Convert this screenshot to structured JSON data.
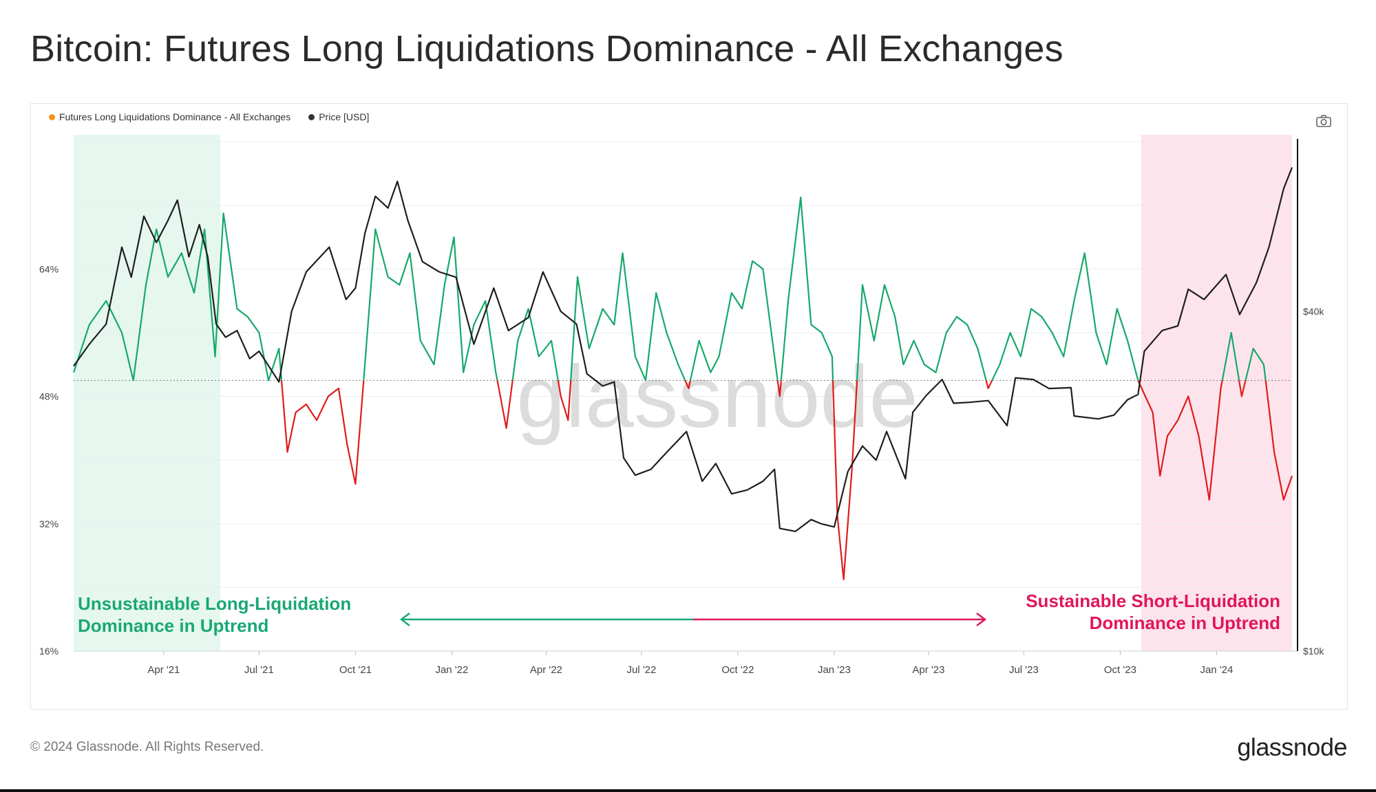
{
  "page": {
    "title": "Bitcoin: Futures Long Liquidations Dominance - All Exchanges",
    "copyright": "© 2024 Glassnode. All Rights Reserved.",
    "brand": "glassnode",
    "watermark": "glassnode"
  },
  "toolbar": {
    "camera_icon": "camera-icon"
  },
  "colors": {
    "above_threshold": "#16a86a",
    "below_threshold": "#e01b1b",
    "price_line": "#1e1e1e",
    "left_band": "#e6f7ef",
    "right_band": "#fde4ec",
    "left_annotation": "#19a874",
    "right_annotation": "#e0165c",
    "legend_dominance": "#f7931a",
    "legend_price": "#333333"
  },
  "chart_data": {
    "type": "line",
    "title": "Bitcoin: Futures Long Liquidations Dominance - All Exchanges",
    "legend": [
      {
        "label": "Futures Long Liquidations Dominance - All Exchanges",
        "color": "#f7931a"
      },
      {
        "label": "Price [USD]",
        "color": "#333333"
      }
    ],
    "x_ticks": [
      "Apr '21",
      "Jul '21",
      "Oct '21",
      "Jan '22",
      "Apr '22",
      "Jul '22",
      "Oct '22",
      "Jan '23",
      "Apr '23",
      "Jul '23",
      "Oct '23",
      "Jan '24"
    ],
    "x_tick_dates": [
      "2021-04-01",
      "2021-07-01",
      "2021-10-01",
      "2022-01-01",
      "2022-04-01",
      "2022-07-01",
      "2022-10-01",
      "2023-01-01",
      "2023-04-01",
      "2023-07-01",
      "2023-10-01",
      "2024-01-01"
    ],
    "x_range": [
      "2021-01-05",
      "2024-03-13"
    ],
    "y_left": {
      "ticks": [
        "16%",
        "32%",
        "48%",
        "64%"
      ],
      "values": [
        16,
        32,
        48,
        64
      ],
      "range": [
        16,
        80
      ],
      "scale": "linear"
    },
    "y_right": {
      "ticks": [
        "$10k",
        "$40k"
      ],
      "values": [
        10000,
        40000
      ],
      "range": [
        10000,
        80000
      ],
      "scale": "log"
    },
    "threshold": 50,
    "grid": true,
    "legend_position": "top-left",
    "series": [
      {
        "name": "Futures Long Liquidations Dominance - All Exchanges",
        "axis": "left",
        "color_above_threshold": "#16a86a",
        "color_below_threshold": "#e01b1b",
        "points": [
          [
            "2021-01-05",
            51
          ],
          [
            "2021-01-20",
            57
          ],
          [
            "2021-02-05",
            60
          ],
          [
            "2021-02-20",
            56
          ],
          [
            "2021-03-03",
            50
          ],
          [
            "2021-03-15",
            62
          ],
          [
            "2021-03-25",
            69
          ],
          [
            "2021-04-05",
            63
          ],
          [
            "2021-04-18",
            66
          ],
          [
            "2021-04-30",
            61
          ],
          [
            "2021-05-10",
            69
          ],
          [
            "2021-05-20",
            53
          ],
          [
            "2021-05-28",
            71
          ],
          [
            "2021-06-10",
            59
          ],
          [
            "2021-06-20",
            58
          ],
          [
            "2021-07-01",
            56
          ],
          [
            "2021-07-10",
            50
          ],
          [
            "2021-07-20",
            54
          ],
          [
            "2021-07-28",
            41
          ],
          [
            "2021-08-05",
            46
          ],
          [
            "2021-08-15",
            47
          ],
          [
            "2021-08-25",
            45
          ],
          [
            "2021-09-05",
            48
          ],
          [
            "2021-09-15",
            49
          ],
          [
            "2021-09-23",
            42
          ],
          [
            "2021-10-01",
            37
          ],
          [
            "2021-10-10",
            52
          ],
          [
            "2021-10-20",
            69
          ],
          [
            "2021-11-01",
            63
          ],
          [
            "2021-11-12",
            62
          ],
          [
            "2021-11-22",
            66
          ],
          [
            "2021-12-02",
            55
          ],
          [
            "2021-12-15",
            52
          ],
          [
            "2021-12-25",
            62
          ],
          [
            "2022-01-03",
            68
          ],
          [
            "2022-01-12",
            51
          ],
          [
            "2022-01-22",
            57
          ],
          [
            "2022-02-02",
            60
          ],
          [
            "2022-02-12",
            51
          ],
          [
            "2022-02-22",
            44
          ],
          [
            "2022-03-05",
            55
          ],
          [
            "2022-03-15",
            59
          ],
          [
            "2022-03-25",
            53
          ],
          [
            "2022-04-06",
            55
          ],
          [
            "2022-04-15",
            48
          ],
          [
            "2022-04-22",
            45
          ],
          [
            "2022-05-01",
            63
          ],
          [
            "2022-05-12",
            54
          ],
          [
            "2022-05-25",
            59
          ],
          [
            "2022-06-05",
            57
          ],
          [
            "2022-06-13",
            66
          ],
          [
            "2022-06-25",
            53
          ],
          [
            "2022-07-05",
            50
          ],
          [
            "2022-07-15",
            61
          ],
          [
            "2022-07-25",
            56
          ],
          [
            "2022-08-05",
            52
          ],
          [
            "2022-08-15",
            49
          ],
          [
            "2022-08-25",
            55
          ],
          [
            "2022-09-05",
            51
          ],
          [
            "2022-09-13",
            53
          ],
          [
            "2022-09-25",
            61
          ],
          [
            "2022-10-05",
            59
          ],
          [
            "2022-10-15",
            65
          ],
          [
            "2022-10-25",
            64
          ],
          [
            "2022-11-03",
            55
          ],
          [
            "2022-11-10",
            48
          ],
          [
            "2022-11-18",
            60
          ],
          [
            "2022-11-30",
            73
          ],
          [
            "2022-12-10",
            57
          ],
          [
            "2022-12-20",
            56
          ],
          [
            "2022-12-30",
            53
          ],
          [
            "2023-01-04",
            33
          ],
          [
            "2023-01-10",
            25
          ],
          [
            "2023-01-18",
            39
          ],
          [
            "2023-01-28",
            62
          ],
          [
            "2023-02-08",
            55
          ],
          [
            "2023-02-18",
            62
          ],
          [
            "2023-02-28",
            58
          ],
          [
            "2023-03-08",
            52
          ],
          [
            "2023-03-18",
            55
          ],
          [
            "2023-03-28",
            52
          ],
          [
            "2023-04-08",
            51
          ],
          [
            "2023-04-18",
            56
          ],
          [
            "2023-04-28",
            58
          ],
          [
            "2023-05-08",
            57
          ],
          [
            "2023-05-18",
            54
          ],
          [
            "2023-05-28",
            49
          ],
          [
            "2023-06-08",
            52
          ],
          [
            "2023-06-18",
            56
          ],
          [
            "2023-06-28",
            53
          ],
          [
            "2023-07-08",
            59
          ],
          [
            "2023-07-18",
            58
          ],
          [
            "2023-07-28",
            56
          ],
          [
            "2023-08-08",
            53
          ],
          [
            "2023-08-18",
            60
          ],
          [
            "2023-08-28",
            66
          ],
          [
            "2023-09-08",
            56
          ],
          [
            "2023-09-18",
            52
          ],
          [
            "2023-09-28",
            59
          ],
          [
            "2023-10-08",
            55
          ],
          [
            "2023-10-18",
            50
          ],
          [
            "2023-10-25",
            48
          ],
          [
            "2023-11-01",
            46
          ],
          [
            "2023-11-08",
            38
          ],
          [
            "2023-11-15",
            43
          ],
          [
            "2023-11-25",
            45
          ],
          [
            "2023-12-05",
            48
          ],
          [
            "2023-12-15",
            43
          ],
          [
            "2023-12-25",
            35
          ],
          [
            "2024-01-05",
            49
          ],
          [
            "2024-01-15",
            56
          ],
          [
            "2024-01-25",
            48
          ],
          [
            "2024-02-05",
            54
          ],
          [
            "2024-02-15",
            52
          ],
          [
            "2024-02-25",
            41
          ],
          [
            "2024-03-05",
            35
          ],
          [
            "2024-03-13",
            38
          ]
        ]
      },
      {
        "name": "Price [USD]",
        "axis": "right",
        "color": "#1e1e1e",
        "points": [
          [
            "2021-01-05",
            32000
          ],
          [
            "2021-01-20",
            35000
          ],
          [
            "2021-02-05",
            38000
          ],
          [
            "2021-02-20",
            52000
          ],
          [
            "2021-03-01",
            46000
          ],
          [
            "2021-03-13",
            59000
          ],
          [
            "2021-03-25",
            53000
          ],
          [
            "2021-04-05",
            58000
          ],
          [
            "2021-04-14",
            63000
          ],
          [
            "2021-04-25",
            50000
          ],
          [
            "2021-05-05",
            57000
          ],
          [
            "2021-05-13",
            50000
          ],
          [
            "2021-05-21",
            38000
          ],
          [
            "2021-05-30",
            36000
          ],
          [
            "2021-06-10",
            37000
          ],
          [
            "2021-06-22",
            33000
          ],
          [
            "2021-07-01",
            34000
          ],
          [
            "2021-07-20",
            30000
          ],
          [
            "2021-08-01",
            40000
          ],
          [
            "2021-08-15",
            47000
          ],
          [
            "2021-09-06",
            52000
          ],
          [
            "2021-09-22",
            42000
          ],
          [
            "2021-10-01",
            44000
          ],
          [
            "2021-10-10",
            55000
          ],
          [
            "2021-10-20",
            64000
          ],
          [
            "2021-11-01",
            61000
          ],
          [
            "2021-11-10",
            68000
          ],
          [
            "2021-11-20",
            58000
          ],
          [
            "2021-12-04",
            49000
          ],
          [
            "2021-12-20",
            47000
          ],
          [
            "2022-01-05",
            46000
          ],
          [
            "2022-01-22",
            35000
          ],
          [
            "2022-02-10",
            44000
          ],
          [
            "2022-02-24",
            37000
          ],
          [
            "2022-03-15",
            39000
          ],
          [
            "2022-03-29",
            47000
          ],
          [
            "2022-04-15",
            40000
          ],
          [
            "2022-04-30",
            38000
          ],
          [
            "2022-05-10",
            31000
          ],
          [
            "2022-05-25",
            29500
          ],
          [
            "2022-06-05",
            30000
          ],
          [
            "2022-06-14",
            22000
          ],
          [
            "2022-06-25",
            20500
          ],
          [
            "2022-07-10",
            21000
          ],
          [
            "2022-07-25",
            22500
          ],
          [
            "2022-08-13",
            24500
          ],
          [
            "2022-08-28",
            20000
          ],
          [
            "2022-09-10",
            21500
          ],
          [
            "2022-09-25",
            19000
          ],
          [
            "2022-10-10",
            19300
          ],
          [
            "2022-10-25",
            20000
          ],
          [
            "2022-11-05",
            21000
          ],
          [
            "2022-11-10",
            16500
          ],
          [
            "2022-11-25",
            16300
          ],
          [
            "2022-12-10",
            17100
          ],
          [
            "2022-12-20",
            16800
          ],
          [
            "2023-01-01",
            16600
          ],
          [
            "2023-01-14",
            20800
          ],
          [
            "2023-01-28",
            23100
          ],
          [
            "2023-02-10",
            21800
          ],
          [
            "2023-02-20",
            24500
          ],
          [
            "2023-03-10",
            20200
          ],
          [
            "2023-03-17",
            26500
          ],
          [
            "2023-03-30",
            28400
          ],
          [
            "2023-04-14",
            30300
          ],
          [
            "2023-04-25",
            27500
          ],
          [
            "2023-05-10",
            27600
          ],
          [
            "2023-05-28",
            27800
          ],
          [
            "2023-06-15",
            25100
          ],
          [
            "2023-06-23",
            30500
          ],
          [
            "2023-07-10",
            30300
          ],
          [
            "2023-07-25",
            29200
          ],
          [
            "2023-08-15",
            29300
          ],
          [
            "2023-08-18",
            26100
          ],
          [
            "2023-09-10",
            25800
          ],
          [
            "2023-09-25",
            26200
          ],
          [
            "2023-10-08",
            27900
          ],
          [
            "2023-10-18",
            28500
          ],
          [
            "2023-10-24",
            34000
          ],
          [
            "2023-11-10",
            37000
          ],
          [
            "2023-11-25",
            37700
          ],
          [
            "2023-12-05",
            43800
          ],
          [
            "2023-12-20",
            42000
          ],
          [
            "2024-01-10",
            46500
          ],
          [
            "2024-01-23",
            39500
          ],
          [
            "2024-02-08",
            45000
          ],
          [
            "2024-02-20",
            52000
          ],
          [
            "2024-03-05",
            66000
          ],
          [
            "2024-03-13",
            72000
          ]
        ]
      }
    ],
    "shaded_regions": [
      {
        "from": "2021-01-05",
        "to": "2021-05-25",
        "color": "#e6f7ef"
      },
      {
        "from": "2023-10-21",
        "to": "2024-03-13",
        "color": "#fde4ec"
      }
    ],
    "annotations": [
      {
        "id": "left",
        "lines": [
          "Unsustainable Long-Liquidation",
          "Dominance in Uptrend"
        ],
        "color": "#19a874"
      },
      {
        "id": "right",
        "lines": [
          "Sustainable Short-Liquidation",
          "Dominance in Uptrend"
        ],
        "color": "#e0165c"
      }
    ]
  }
}
